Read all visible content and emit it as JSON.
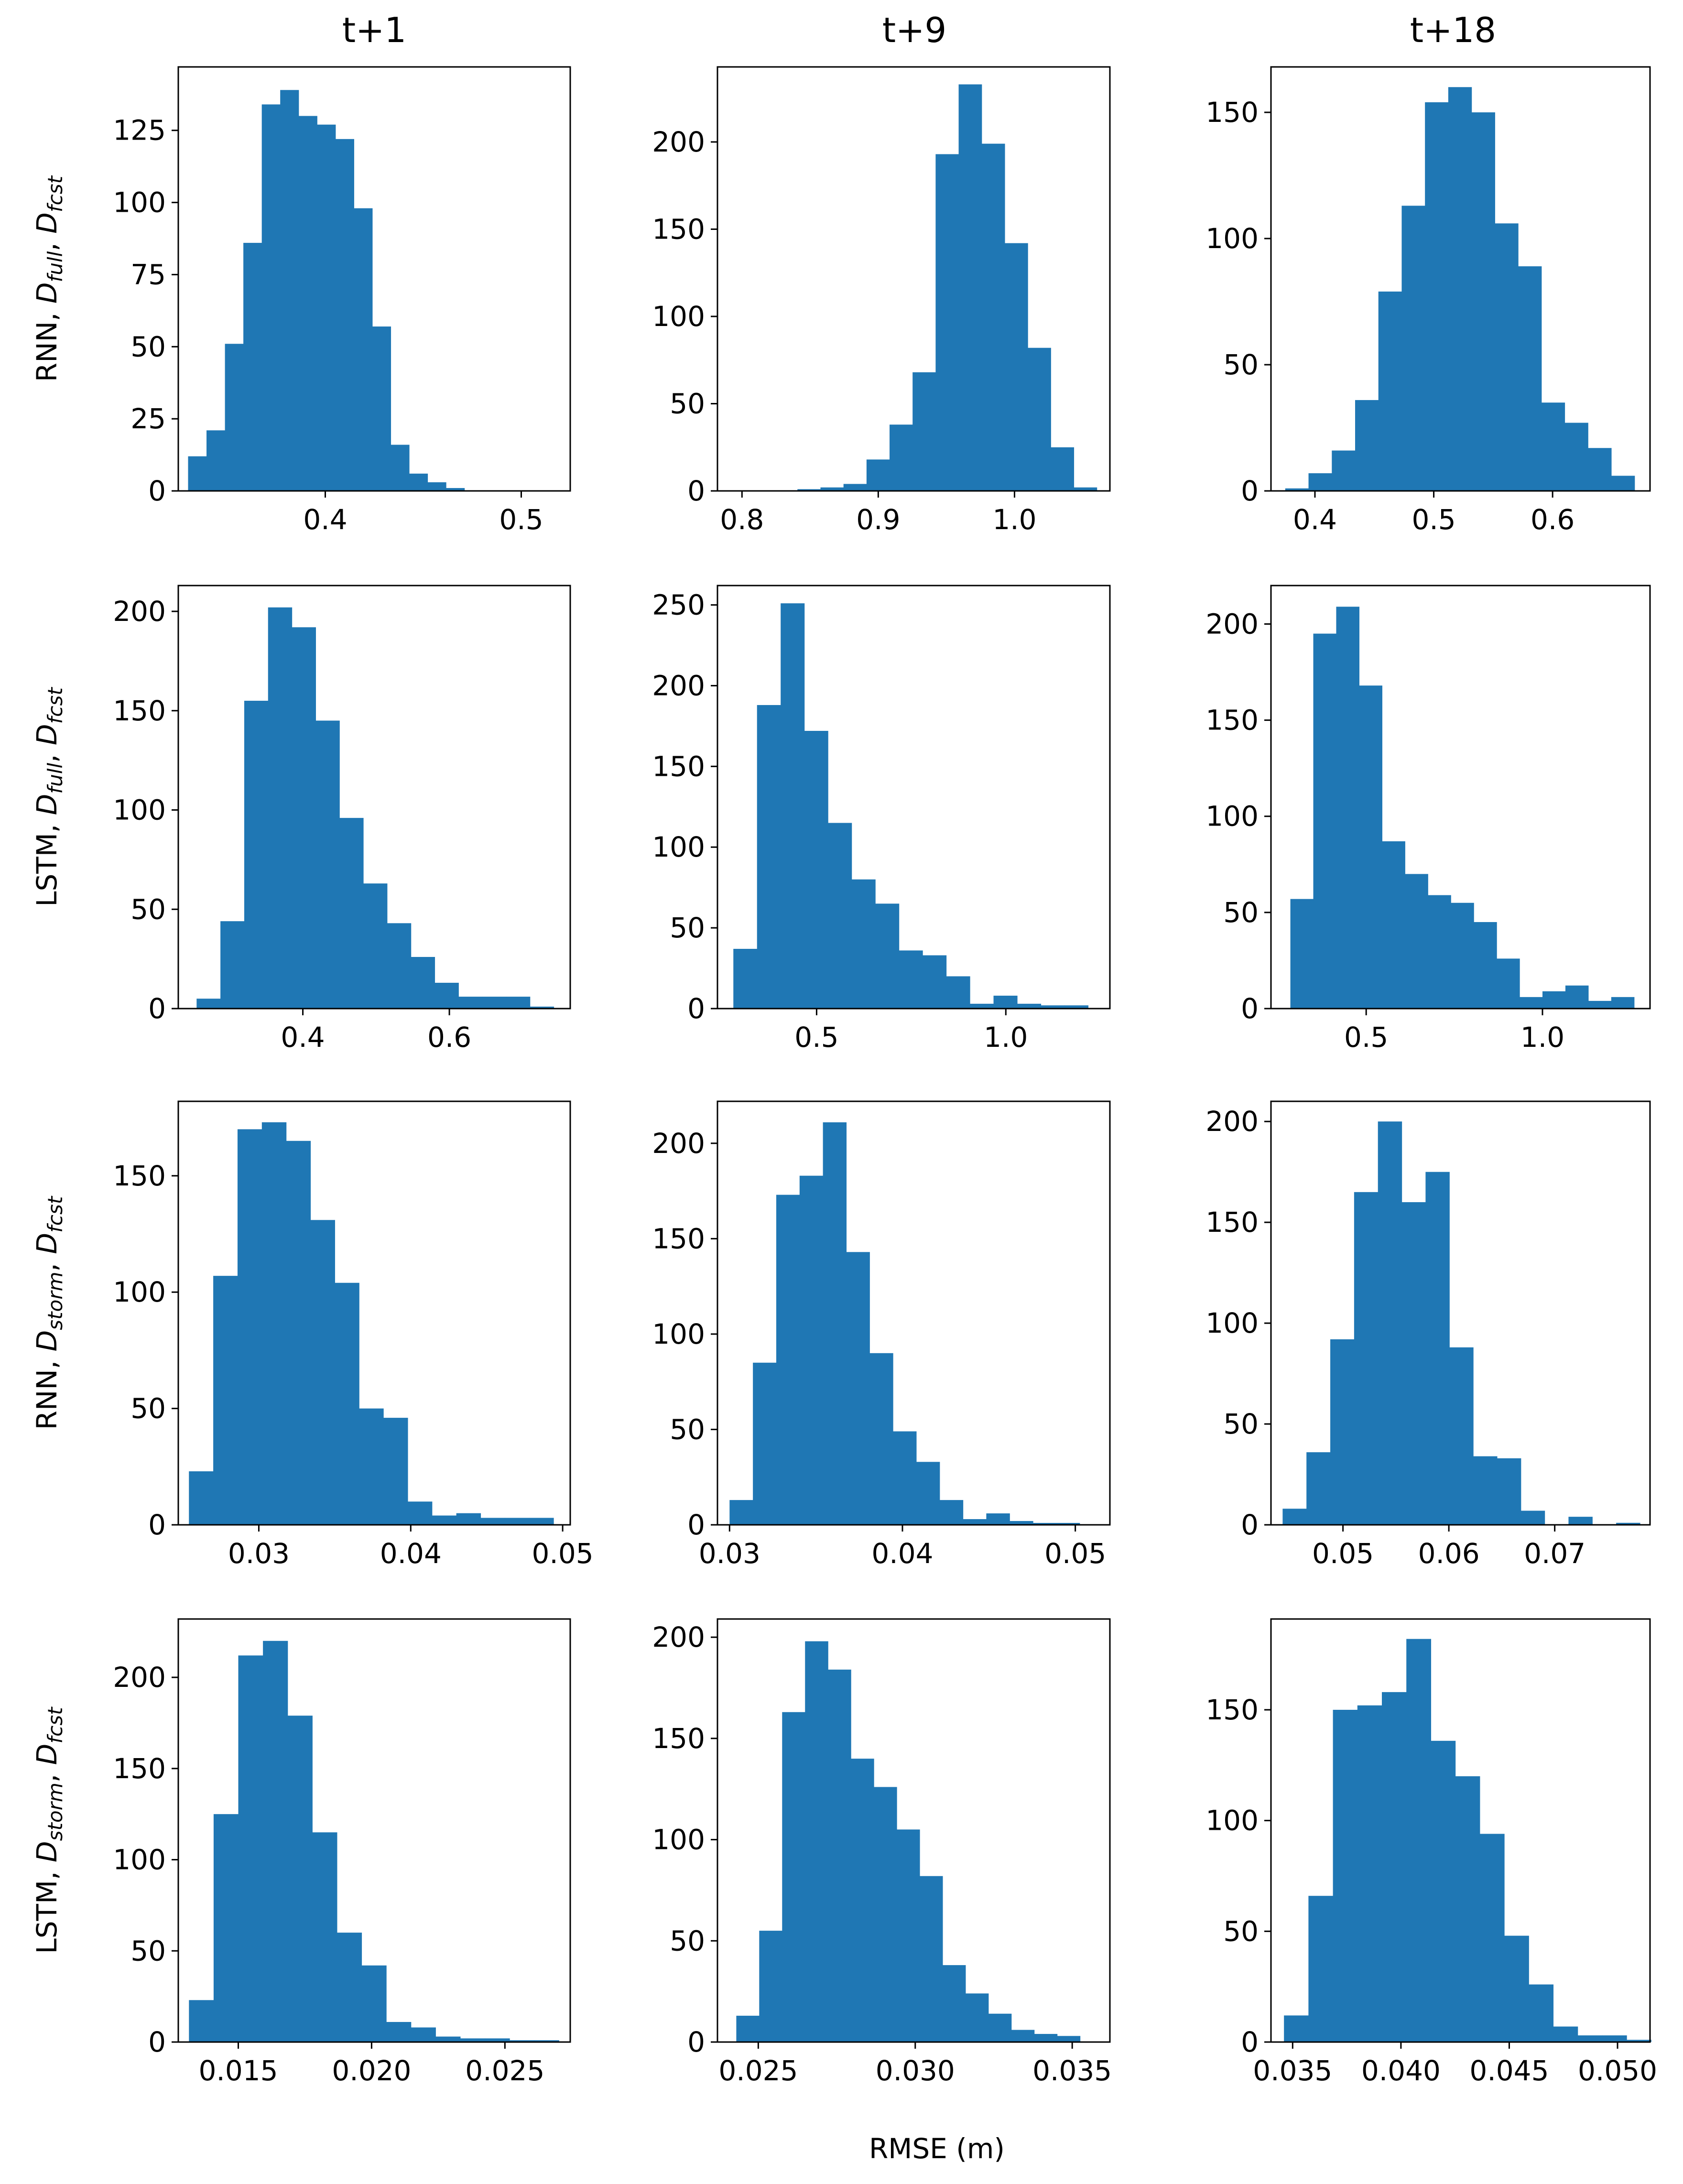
{
  "figure": {
    "column_titles": [
      "t+1",
      "t+9",
      "t+18"
    ],
    "row_labels": [
      {
        "base": "RNN, ",
        "parts": [
          [
            "D",
            "full"
          ],
          [
            "D",
            "fcst"
          ]
        ]
      },
      {
        "base": "LSTM, ",
        "parts": [
          [
            "D",
            "full"
          ],
          [
            "D",
            "fcst"
          ]
        ]
      },
      {
        "base": "RNN, ",
        "parts": [
          [
            "D",
            "storm"
          ],
          [
            "D",
            "fcst"
          ]
        ]
      },
      {
        "base": "LSTM, ",
        "parts": [
          [
            "D",
            "storm"
          ],
          [
            "D",
            "fcst"
          ]
        ]
      }
    ],
    "xlabel": "RMSE (m)",
    "bar_color": "#1f77b4"
  },
  "chart_data": [
    {
      "type": "bar",
      "row": 0,
      "col": 0,
      "title": "t+1",
      "ylabel": "RNN, D_full, D_fcst",
      "bin_start": 0.33,
      "bin_width": 0.0094,
      "values": [
        12,
        21,
        51,
        86,
        134,
        139,
        130,
        127,
        122,
        98,
        57,
        16,
        6,
        3,
        1
      ],
      "xlim": [
        0.325,
        0.525
      ],
      "ylim": [
        0,
        147
      ],
      "xticks": [
        0.4,
        0.5
      ],
      "xticklabels": [
        "0.4",
        "0.5"
      ],
      "yticks": [
        0,
        25,
        50,
        75,
        100,
        125
      ],
      "yticklabels": [
        "0",
        "25",
        "50",
        "75",
        "100",
        "125"
      ]
    },
    {
      "type": "bar",
      "row": 0,
      "col": 1,
      "title": "t+9",
      "ylabel": "",
      "bin_start": 0.79,
      "bin_width": 0.0169,
      "values": [
        0,
        0,
        0,
        1,
        2,
        4,
        18,
        38,
        68,
        193,
        233,
        199,
        142,
        82,
        25,
        2
      ],
      "xlim": [
        0.782,
        1.07
      ],
      "ylim": [
        0,
        243
      ],
      "xticks": [
        0.8,
        0.9,
        1.0
      ],
      "xticklabels": [
        "0.8",
        "0.9",
        "1.0"
      ],
      "yticks": [
        0,
        50,
        100,
        150,
        200
      ],
      "yticklabels": [
        "0",
        "50",
        "100",
        "150",
        "200"
      ]
    },
    {
      "type": "bar",
      "row": 0,
      "col": 2,
      "title": "t+18",
      "ylabel": "",
      "bin_start": 0.375,
      "bin_width": 0.0196,
      "values": [
        1,
        7,
        16,
        36,
        79,
        113,
        154,
        160,
        150,
        106,
        89,
        35,
        27,
        17,
        6
      ],
      "xlim": [
        0.363,
        0.682
      ],
      "ylim": [
        0,
        168
      ],
      "xticks": [
        0.4,
        0.5,
        0.6
      ],
      "xticklabels": [
        "0.4",
        "0.5",
        "0.6"
      ],
      "yticks": [
        0,
        50,
        100,
        150
      ],
      "yticklabels": [
        "0",
        "50",
        "100",
        "150"
      ]
    },
    {
      "type": "bar",
      "row": 1,
      "col": 0,
      "title": "",
      "ylabel": "LSTM, D_full, D_fcst",
      "bin_start": 0.255,
      "bin_width": 0.0325,
      "values": [
        5,
        44,
        155,
        202,
        192,
        145,
        96,
        63,
        43,
        26,
        13,
        6,
        6,
        6,
        1
      ],
      "xlim": [
        0.23,
        0.765
      ],
      "ylim": [
        0,
        213
      ],
      "xticks": [
        0.4,
        0.6
      ],
      "xticklabels": [
        "0.4",
        "0.6"
      ],
      "yticks": [
        0,
        50,
        100,
        150,
        200
      ],
      "yticklabels": [
        "0",
        "50",
        "100",
        "150",
        "200"
      ]
    },
    {
      "type": "bar",
      "row": 1,
      "col": 1,
      "title": "",
      "ylabel": "",
      "bin_start": 0.28,
      "bin_width": 0.0625,
      "values": [
        37,
        188,
        251,
        172,
        115,
        80,
        65,
        36,
        33,
        20,
        3,
        8,
        3,
        2,
        2
      ],
      "xlim": [
        0.238,
        1.275
      ],
      "ylim": [
        0,
        262
      ],
      "xticks": [
        0.5,
        1.0
      ],
      "xticklabels": [
        "0.5",
        "1.0"
      ],
      "yticks": [
        0,
        50,
        100,
        150,
        200,
        250
      ],
      "yticklabels": [
        "0",
        "50",
        "100",
        "150",
        "200",
        "250"
      ]
    },
    {
      "type": "bar",
      "row": 1,
      "col": 2,
      "title": "",
      "ylabel": "",
      "bin_start": 0.285,
      "bin_width": 0.065,
      "values": [
        57,
        195,
        209,
        168,
        87,
        70,
        59,
        55,
        45,
        26,
        6,
        9,
        12,
        4,
        6
      ],
      "xlim": [
        0.23,
        1.305
      ],
      "ylim": [
        0,
        220
      ],
      "xticks": [
        0.5,
        1.0
      ],
      "xticklabels": [
        "0.5",
        "1.0"
      ],
      "yticks": [
        0,
        50,
        100,
        150,
        200
      ],
      "yticklabels": [
        "0",
        "50",
        "100",
        "150",
        "200"
      ]
    },
    {
      "type": "bar",
      "row": 2,
      "col": 0,
      "title": "",
      "ylabel": "RNN, D_storm, D_fcst",
      "bin_start": 0.0254,
      "bin_width": 0.0016,
      "values": [
        23,
        107,
        170,
        173,
        165,
        131,
        104,
        50,
        46,
        10,
        4,
        5,
        3,
        3,
        3
      ],
      "xlim": [
        0.0247,
        0.0505
      ],
      "ylim": [
        0,
        182
      ],
      "xticks": [
        0.03,
        0.04,
        0.05
      ],
      "xticklabels": [
        "0.03",
        "0.04",
        "0.05"
      ],
      "yticks": [
        0,
        50,
        100,
        150
      ],
      "yticklabels": [
        "0",
        "50",
        "100",
        "150"
      ]
    },
    {
      "type": "bar",
      "row": 2,
      "col": 1,
      "title": "",
      "ylabel": "",
      "bin_start": 0.03,
      "bin_width": 0.00135,
      "values": [
        13,
        85,
        173,
        183,
        211,
        143,
        90,
        49,
        33,
        13,
        3,
        6,
        2,
        1,
        1
      ],
      "xlim": [
        0.0293,
        0.052
      ],
      "ylim": [
        0,
        222
      ],
      "xticks": [
        0.03,
        0.04,
        0.05
      ],
      "xticklabels": [
        "0.03",
        "0.04",
        "0.05"
      ],
      "yticks": [
        0,
        50,
        100,
        150,
        200
      ],
      "yticklabels": [
        "0",
        "50",
        "100",
        "150",
        "200"
      ]
    },
    {
      "type": "bar",
      "row": 2,
      "col": 2,
      "title": "",
      "ylabel": "",
      "bin_start": 0.0443,
      "bin_width": 0.00225,
      "values": [
        8,
        36,
        92,
        165,
        200,
        160,
        175,
        88,
        34,
        33,
        7,
        0,
        4,
        0,
        1
      ],
      "xlim": [
        0.0432,
        0.079
      ],
      "ylim": [
        0,
        210
      ],
      "xticks": [
        0.05,
        0.06,
        0.07
      ],
      "xticklabels": [
        "0.05",
        "0.06",
        "0.07"
      ],
      "yticks": [
        0,
        50,
        100,
        150,
        200
      ],
      "yticklabels": [
        "0",
        "50",
        "100",
        "150",
        "200"
      ]
    },
    {
      "type": "bar",
      "row": 3,
      "col": 0,
      "title": "",
      "ylabel": "LSTM, D_storm, D_fcst",
      "bin_start": 0.01315,
      "bin_width": 0.000925,
      "values": [
        23,
        125,
        212,
        220,
        179,
        115,
        60,
        42,
        11,
        8,
        3,
        2,
        2,
        1,
        1
      ],
      "xlim": [
        0.01275,
        0.02745
      ],
      "ylim": [
        0,
        232
      ],
      "xticks": [
        0.015,
        0.02,
        0.025
      ],
      "xticklabels": [
        "0.015",
        "0.020",
        "0.025"
      ],
      "yticks": [
        0,
        50,
        100,
        150,
        200
      ],
      "yticklabels": [
        "0",
        "50",
        "100",
        "150",
        "200"
      ]
    },
    {
      "type": "bar",
      "row": 3,
      "col": 1,
      "title": "",
      "ylabel": "",
      "bin_start": 0.0243,
      "bin_width": 0.00073,
      "values": [
        13,
        55,
        163,
        198,
        184,
        140,
        126,
        105,
        82,
        38,
        24,
        14,
        6,
        4,
        3
      ],
      "xlim": [
        0.0237,
        0.0362
      ],
      "ylim": [
        0,
        209
      ],
      "xticks": [
        0.025,
        0.03,
        0.035
      ],
      "xticklabels": [
        "0.025",
        "0.030",
        "0.035"
      ],
      "yticks": [
        0,
        50,
        100,
        150,
        200
      ],
      "yticklabels": [
        "0",
        "50",
        "100",
        "150",
        "200"
      ]
    },
    {
      "type": "bar",
      "row": 3,
      "col": 2,
      "title": "",
      "ylabel": "",
      "bin_start": 0.0346,
      "bin_width": 0.00113,
      "values": [
        12,
        66,
        150,
        152,
        158,
        182,
        136,
        120,
        94,
        48,
        26,
        7,
        3,
        3,
        1
      ],
      "xlim": [
        0.034,
        0.0515
      ],
      "ylim": [
        0,
        191
      ],
      "xticks": [
        0.035,
        0.04,
        0.045,
        0.05
      ],
      "xticklabels": [
        "0.035",
        "0.040",
        "0.045",
        "0.050"
      ],
      "yticks": [
        0,
        50,
        100,
        150
      ],
      "yticklabels": [
        "0",
        "50",
        "100",
        "150"
      ]
    }
  ]
}
